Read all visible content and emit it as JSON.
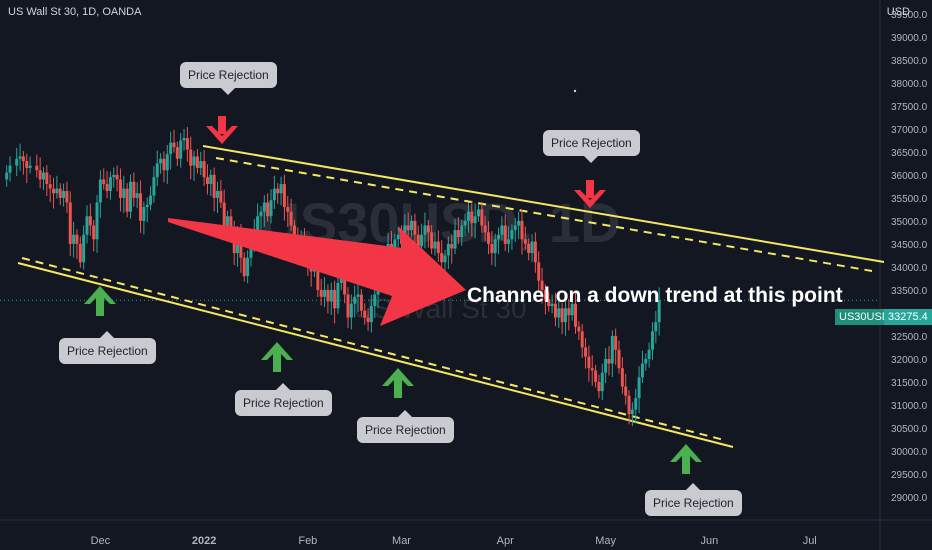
{
  "header": {
    "symbol": "US Wall St 30, 1D, OANDA",
    "currency": "USD"
  },
  "watermark": {
    "main": "US30USD, 1D",
    "sub": "US Wall St 30"
  },
  "annotation_text": "Channel on a down trend at this point",
  "callouts": [
    {
      "id": "rej-top-1",
      "label": "Price Rejection"
    },
    {
      "id": "rej-top-2",
      "label": "Price Rejection"
    },
    {
      "id": "rej-bot-1",
      "label": "Price Rejection"
    },
    {
      "id": "rej-bot-2",
      "label": "Price Rejection"
    },
    {
      "id": "rej-bot-3",
      "label": "Price Rejection"
    },
    {
      "id": "rej-bot-4",
      "label": "Price Rejection"
    }
  ],
  "price_tags": {
    "symbol": "US30USD",
    "value": "33275.4"
  },
  "colors": {
    "bg": "#131722",
    "up": "#26a69a",
    "down": "#ef5350",
    "channel": "#f5e663",
    "arrow_red": "#f23645",
    "arrow_green": "#4caf50"
  },
  "chart_data": {
    "type": "candlestick",
    "title": "US Wall St 30, 1D, OANDA",
    "ylabel": "USD",
    "ylim": [
      28500,
      39800
    ],
    "y_ticks": [
      29000,
      29500,
      30000,
      30500,
      31000,
      31500,
      32000,
      32500,
      33000,
      33500,
      34000,
      34500,
      35000,
      35500,
      36000,
      36500,
      37000,
      37500,
      38000,
      38500,
      39000,
      39500
    ],
    "y_tick_labels": [
      "29000.0",
      "29500.0",
      "30000.0",
      "30500.0",
      "31000.0",
      "31500.0",
      "32000.0",
      "32500.0",
      "33000.0",
      "33500.0",
      "34000.0",
      "34500.0",
      "35000.0",
      "35500.0",
      "36000.0",
      "36500.0",
      "37000.0",
      "37500.0",
      "38000.0",
      "38500.0",
      "39000.0",
      "39500.0"
    ],
    "x_tick_labels": [
      {
        "label": "Dec",
        "day": 15
      },
      {
        "label": "2022",
        "day": 46
      },
      {
        "label": "Feb",
        "day": 77
      },
      {
        "label": "Mar",
        "day": 105
      },
      {
        "label": "Apr",
        "day": 136
      },
      {
        "label": "May",
        "day": 166
      },
      {
        "label": "Jun",
        "day": 197
      },
      {
        "label": "Jul",
        "day": 227
      }
    ],
    "x_range": [
      -15,
      248
    ],
    "last_price": 33275.4,
    "closes": [
      [
        -15,
        35900
      ],
      [
        -13,
        36050
      ],
      [
        -12,
        36200
      ],
      [
        -10,
        36350
      ],
      [
        -9,
        36400
      ],
      [
        -8,
        36300
      ],
      [
        -7,
        36150
      ],
      [
        -6,
        36200
      ],
      [
        -4,
        36100
      ],
      [
        -3,
        35900
      ],
      [
        -2,
        36050
      ],
      [
        -1,
        35800
      ],
      [
        0,
        35700
      ],
      [
        1,
        35600
      ],
      [
        2,
        35700
      ],
      [
        3,
        35500
      ],
      [
        4,
        35650
      ],
      [
        5,
        35400
      ],
      [
        6,
        34500
      ],
      [
        7,
        34700
      ],
      [
        8,
        34500
      ],
      [
        9,
        34100
      ],
      [
        10,
        34700
      ],
      [
        11,
        35100
      ],
      [
        12,
        34900
      ],
      [
        13,
        34600
      ],
      [
        14,
        35400
      ],
      [
        15,
        35900
      ],
      [
        16,
        35800
      ],
      [
        17,
        35650
      ],
      [
        18,
        35950
      ],
      [
        19,
        36000
      ],
      [
        20,
        35900
      ],
      [
        21,
        35500
      ],
      [
        22,
        35700
      ],
      [
        23,
        35200
      ],
      [
        24,
        35850
      ],
      [
        25,
        35500
      ],
      [
        26,
        35600
      ],
      [
        27,
        35000
      ],
      [
        28,
        35300
      ],
      [
        29,
        35350
      ],
      [
        30,
        35550
      ],
      [
        31,
        35950
      ],
      [
        32,
        36250
      ],
      [
        33,
        36350
      ],
      [
        34,
        36100
      ],
      [
        35,
        36450
      ],
      [
        36,
        36700
      ],
      [
        37,
        36600
      ],
      [
        38,
        36350
      ],
      [
        39,
        36750
      ],
      [
        40,
        36800
      ],
      [
        41,
        36550
      ],
      [
        42,
        36200
      ],
      [
        43,
        36400
      ],
      [
        44,
        36150
      ],
      [
        45,
        36300
      ],
      [
        46,
        35950
      ],
      [
        47,
        35800
      ],
      [
        48,
        36000
      ],
      [
        49,
        35500
      ],
      [
        50,
        35650
      ],
      [
        51,
        35400
      ],
      [
        52,
        34900
      ],
      [
        53,
        35100
      ],
      [
        54,
        34800
      ],
      [
        55,
        34300
      ],
      [
        56,
        34650
      ],
      [
        57,
        34200
      ],
      [
        58,
        33800
      ],
      [
        59,
        34200
      ],
      [
        60,
        34550
      ],
      [
        61,
        34800
      ],
      [
        62,
        35100
      ],
      [
        63,
        35200
      ],
      [
        64,
        35400
      ],
      [
        65,
        35100
      ],
      [
        66,
        35450
      ],
      [
        67,
        35700
      ],
      [
        68,
        35600
      ],
      [
        69,
        35800
      ],
      [
        70,
        35300
      ],
      [
        71,
        35200
      ],
      [
        72,
        34900
      ],
      [
        73,
        34700
      ],
      [
        74,
        34500
      ],
      [
        75,
        34600
      ],
      [
        76,
        34300
      ],
      [
        77,
        34100
      ],
      [
        78,
        33900
      ],
      [
        79,
        34000
      ],
      [
        80,
        33500
      ],
      [
        81,
        33350
      ],
      [
        82,
        33500
      ],
      [
        83,
        33250
      ],
      [
        84,
        33500
      ],
      [
        85,
        33100
      ],
      [
        86,
        33650
      ],
      [
        87,
        33900
      ],
      [
        88,
        33400
      ],
      [
        89,
        32900
      ],
      [
        90,
        33200
      ],
      [
        91,
        33350
      ],
      [
        92,
        33400
      ],
      [
        93,
        33050
      ],
      [
        94,
        32900
      ],
      [
        95,
        32800
      ],
      [
        96,
        33150
      ],
      [
        97,
        33400
      ],
      [
        98,
        33800
      ],
      [
        99,
        34000
      ],
      [
        100,
        34200
      ],
      [
        101,
        34500
      ],
      [
        102,
        34400
      ],
      [
        103,
        34600
      ],
      [
        104,
        34700
      ],
      [
        105,
        34500
      ],
      [
        106,
        34900
      ],
      [
        107,
        34800
      ],
      [
        108,
        35000
      ],
      [
        109,
        34700
      ],
      [
        110,
        34450
      ],
      [
        111,
        34700
      ],
      [
        112,
        34900
      ],
      [
        113,
        34750
      ],
      [
        114,
        34400
      ],
      [
        115,
        34550
      ],
      [
        116,
        34300
      ],
      [
        117,
        34100
      ],
      [
        118,
        34250
      ],
      [
        119,
        34500
      ],
      [
        120,
        34400
      ],
      [
        121,
        34800
      ],
      [
        122,
        34650
      ],
      [
        123,
        34900
      ],
      [
        124,
        35000
      ],
      [
        125,
        35200
      ],
      [
        126,
        34950
      ],
      [
        127,
        35100
      ],
      [
        128,
        35250
      ],
      [
        129,
        34900
      ],
      [
        130,
        34750
      ],
      [
        131,
        34500
      ],
      [
        132,
        34300
      ],
      [
        133,
        34600
      ],
      [
        134,
        34700
      ],
      [
        135,
        34900
      ],
      [
        136,
        34500
      ],
      [
        137,
        34600
      ],
      [
        138,
        34800
      ],
      [
        139,
        34900
      ],
      [
        140,
        35000
      ],
      [
        141,
        34600
      ],
      [
        142,
        34500
      ],
      [
        143,
        34300
      ],
      [
        144,
        34550
      ],
      [
        145,
        34100
      ],
      [
        146,
        33700
      ],
      [
        147,
        33500
      ],
      [
        148,
        33300
      ],
      [
        149,
        33150
      ],
      [
        150,
        33200
      ],
      [
        151,
        32900
      ],
      [
        152,
        33100
      ],
      [
        153,
        32800
      ],
      [
        154,
        33100
      ],
      [
        155,
        32950
      ],
      [
        156,
        33200
      ],
      [
        157,
        32700
      ],
      [
        158,
        32600
      ],
      [
        159,
        32250
      ],
      [
        160,
        32050
      ],
      [
        161,
        31800
      ],
      [
        162,
        31750
      ],
      [
        163,
        31500
      ],
      [
        164,
        31300
      ],
      [
        165,
        31700
      ],
      [
        166,
        32000
      ],
      [
        167,
        31900
      ],
      [
        168,
        32500
      ],
      [
        169,
        32200
      ],
      [
        170,
        31800
      ],
      [
        171,
        31400
      ],
      [
        172,
        31200
      ],
      [
        173,
        30800
      ],
      [
        174,
        30900
      ],
      [
        175,
        31150
      ],
      [
        176,
        31600
      ],
      [
        177,
        31900
      ],
      [
        178,
        32000
      ],
      [
        179,
        32200
      ],
      [
        180,
        32600
      ],
      [
        181,
        32800
      ],
      [
        182,
        33275
      ]
    ]
  }
}
